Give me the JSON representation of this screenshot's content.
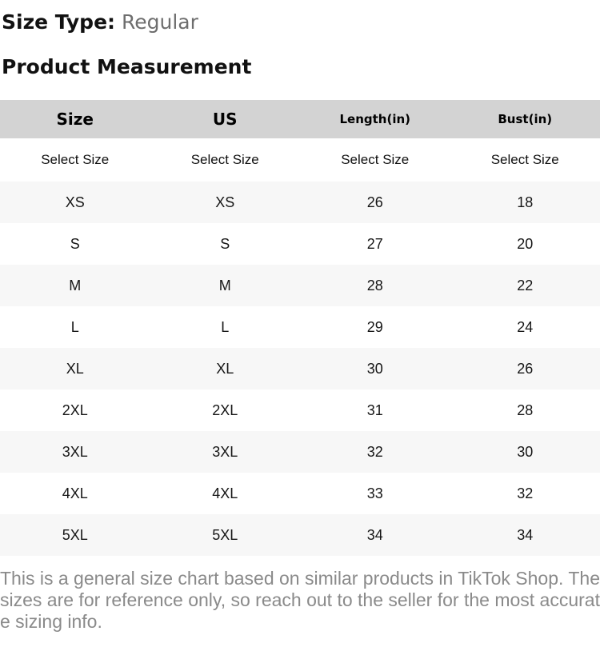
{
  "size_type": {
    "label": "Size Type:",
    "value": "Regular"
  },
  "section_title": "Product Measurement",
  "table": {
    "columns": [
      {
        "label": "Size",
        "size": "large"
      },
      {
        "label": "US",
        "size": "large"
      },
      {
        "label": "Length(in)",
        "size": "small"
      },
      {
        "label": "Bust(in)",
        "size": "small"
      }
    ],
    "selector_row": [
      "Select Size",
      "Select Size",
      "Select Size",
      "Select Size"
    ],
    "rows": [
      [
        "XS",
        "XS",
        "26",
        "18"
      ],
      [
        "S",
        "S",
        "27",
        "20"
      ],
      [
        "M",
        "M",
        "28",
        "22"
      ],
      [
        "L",
        "L",
        "29",
        "24"
      ],
      [
        "XL",
        "XL",
        "30",
        "26"
      ],
      [
        "2XL",
        "2XL",
        "31",
        "28"
      ],
      [
        "3XL",
        "3XL",
        "32",
        "30"
      ],
      [
        "4XL",
        "4XL",
        "33",
        "32"
      ],
      [
        "5XL",
        "5XL",
        "34",
        "34"
      ]
    ]
  },
  "disclaimer": "This is a general size chart based on similar products in TikTok Shop. The sizes are for reference only, so reach out to the seller for the most accurate sizing info.",
  "colors": {
    "header_bg": "#d3d3d3",
    "stripe_bg": "#f7f7f7",
    "heading_text": "#111111",
    "muted_value_text": "#6e6e6e",
    "disclaimer_text": "#8a8a8a"
  }
}
